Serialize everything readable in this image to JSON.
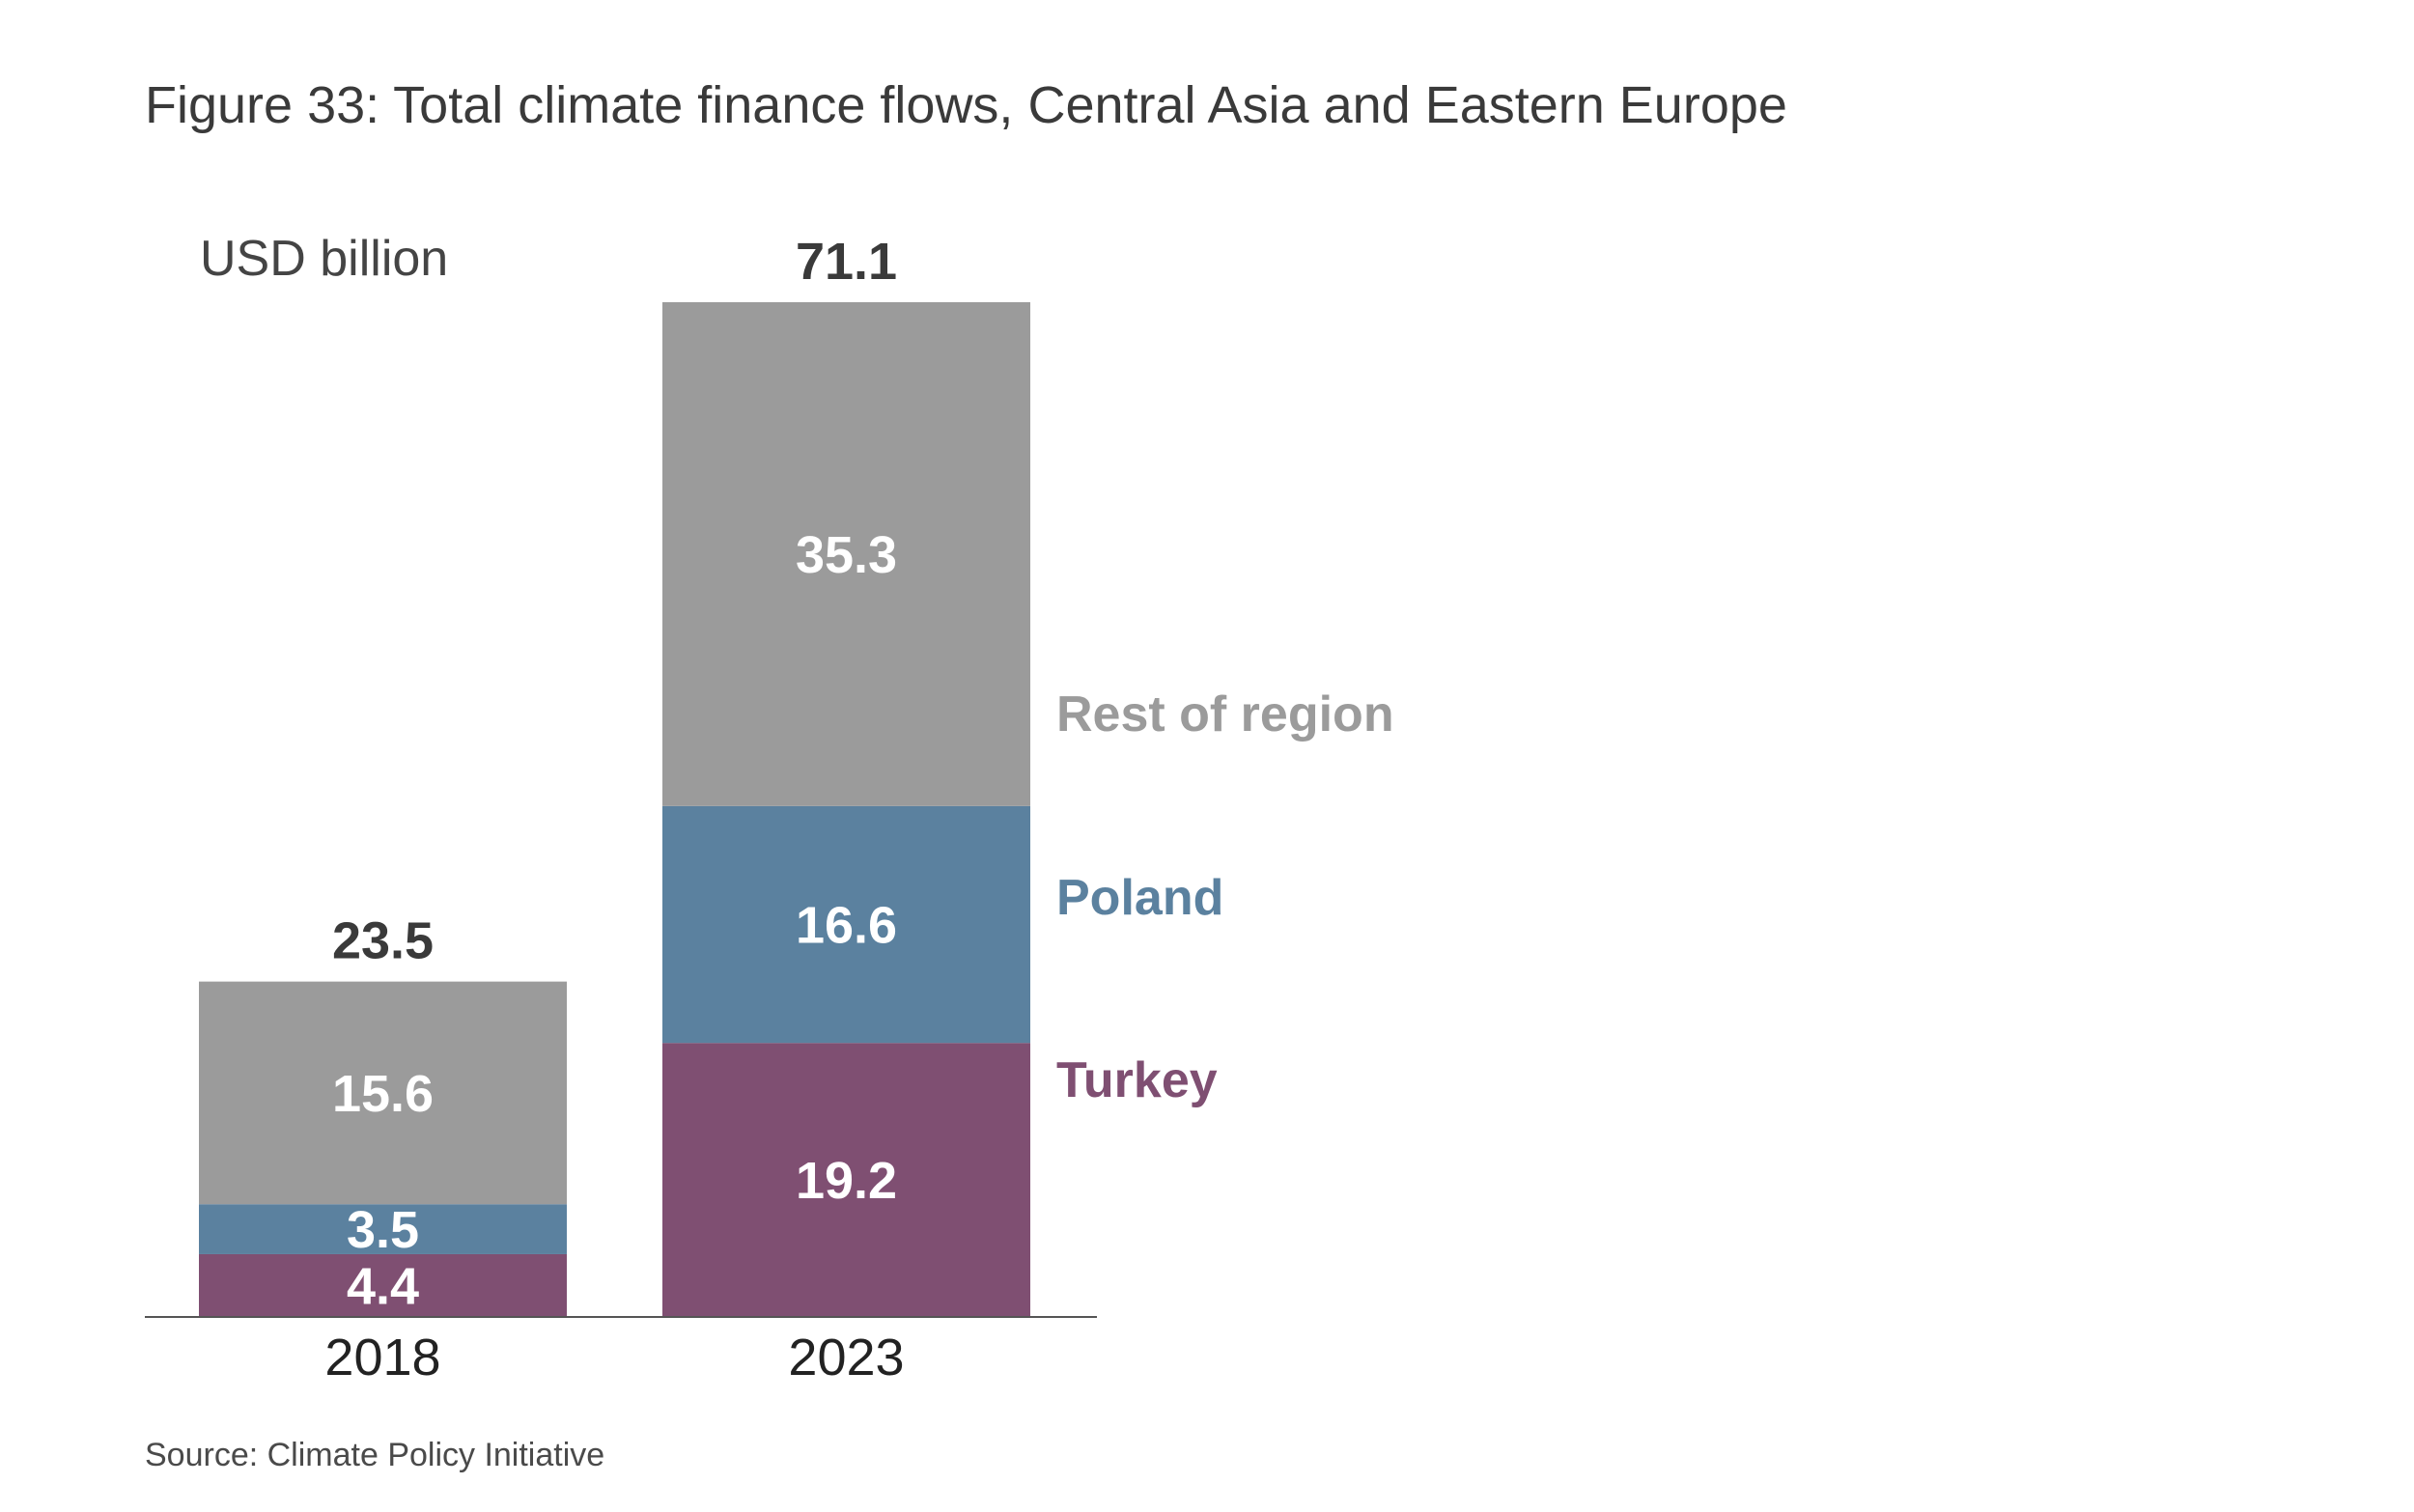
{
  "title": "Figure 33: Total climate finance flows, Central Asia and Eastern Europe",
  "source": "Source: Climate Policy Initiative",
  "colors": {
    "Turkey": "#7f4f72",
    "Poland": "#5b819f",
    "Rest of region": "#9b9b9b"
  },
  "chart_data": {
    "type": "bar",
    "stacked": true,
    "categories": [
      "2018",
      "2023"
    ],
    "ylabel": "USD billion",
    "ylim": [
      0,
      71.1
    ],
    "series": [
      {
        "name": "Turkey",
        "values": [
          4.4,
          19.2
        ],
        "labels": [
          "4.4",
          "19.2"
        ]
      },
      {
        "name": "Poland",
        "values": [
          3.5,
          16.6
        ],
        "labels": [
          "3.5",
          "16.6"
        ]
      },
      {
        "name": "Rest of region",
        "values": [
          15.6,
          35.3
        ],
        "labels": [
          "15.6",
          "35.3"
        ]
      }
    ],
    "totals": [
      23.5,
      71.1
    ],
    "total_labels": [
      "23.5",
      "71.1"
    ],
    "legend": "right of last bar",
    "grid": false
  }
}
